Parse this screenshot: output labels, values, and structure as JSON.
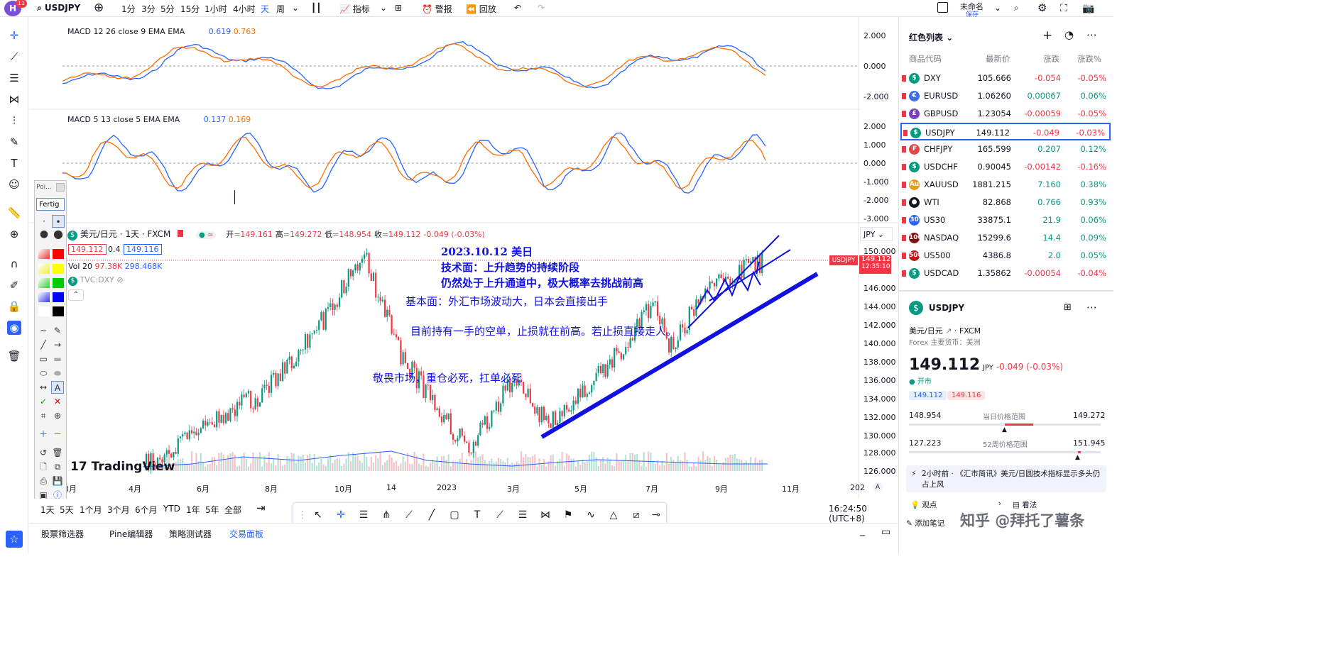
{
  "topbar": {
    "logo_letter": "H",
    "logo_badge": "11",
    "symbol": "USDJPY",
    "intervals": [
      "1分",
      "3分",
      "5分",
      "15分",
      "1小时",
      "4小时",
      "天",
      "周"
    ],
    "active_interval": "天",
    "indicators_label": "指标",
    "alert_label": "警报",
    "replay_label": "回放",
    "layout_name": "未命名",
    "layout_status": "保存"
  },
  "chart": {
    "macd1": {
      "label": "MACD 12 26 close 9 EMA EMA",
      "v1": "0.619",
      "v2": "0.763",
      "axis": [
        "2.000",
        "0.000",
        "-2.000"
      ]
    },
    "macd2": {
      "label": "MACD 5 13 close 5 EMA EMA",
      "v1": "0.137",
      "v2": "0.169",
      "axis": [
        "2.000",
        "1.000",
        "0.000",
        "-1.000",
        "-2.000",
        "-3.000"
      ]
    },
    "legend": {
      "title": "美元/日元 · 1天 · FXCM",
      "o_label": "开",
      "o": "=149.161",
      "h_label": "高",
      "h": "=149.272",
      "l_label": "低",
      "l": "=148.954",
      "c_label": "收",
      "c": "=149.112",
      "change": "-0.049 (-0.03%)",
      "bid": "149.112",
      "spread": "0.4",
      "ask": "149.116",
      "vol_label": "Vol 20",
      "vol1": "97.38K",
      "vol2": "298.468K",
      "compare": "TVC:DXY"
    },
    "currency": "JPY",
    "price_axis": [
      "150.000",
      "148.000",
      "146.000",
      "144.000",
      "142.000",
      "140.000",
      "138.000",
      "136.000",
      "134.000",
      "132.000",
      "130.000",
      "128.000",
      "126.000"
    ],
    "price_tag_symbol": "USDJPY",
    "price_tag_value": "149.112",
    "price_tag_time": "12:35:10",
    "x_axis": [
      "3月",
      "4月",
      "6月",
      "8月",
      "10月",
      "14",
      "2023",
      "3月",
      "5月",
      "7月",
      "9月",
      "11月",
      "202"
    ],
    "watermark": "TradingView",
    "annotations": [
      "2023.10.12 美日",
      "技术面：上升趋势的持续阶段",
      "仍然处于上升通道中，极大概率去挑战前高",
      "基本面：外汇市场波动大，日本会直接出手",
      "目前持有一手的空单，止损就在前高。若止损直接走人。",
      "敬畏市场，重仓必死，扛单必死"
    ]
  },
  "draw_panel": {
    "title": "Poi...",
    "input_value": "Fertig"
  },
  "bottom": {
    "ranges": [
      "1天",
      "5天",
      "1个月",
      "3个月",
      "6个月",
      "YTD",
      "1年",
      "5年",
      "全部"
    ],
    "clock": "16:24:50 (UTC+8)",
    "tabs": [
      "股票筛选器",
      "Pine编辑器",
      "策略测试器",
      "交易面板"
    ],
    "active_tab": "交易面板"
  },
  "watchlist": {
    "title": "红色列表",
    "headers": [
      "商品代码",
      "最新价",
      "涨跌",
      "涨跌%"
    ],
    "rows": [
      {
        "sym": "DXY",
        "last": "105.666",
        "chg": "-0.054",
        "pct": "-0.05%",
        "dir": "dn",
        "color": "#089981",
        "ico": "$"
      },
      {
        "sym": "EURUSD",
        "last": "1.06260",
        "chg": "0.00067",
        "pct": "0.06%",
        "dir": "up",
        "color": "#3d6fe0",
        "ico": "€"
      },
      {
        "sym": "GBPUSD",
        "last": "1.23054",
        "chg": "-0.00059",
        "pct": "-0.05%",
        "dir": "dn",
        "color": "#7b3fbf",
        "ico": "£"
      },
      {
        "sym": "USDJPY",
        "last": "149.112",
        "chg": "-0.049",
        "pct": "-0.03%",
        "dir": "dn",
        "color": "#089981",
        "ico": "$"
      },
      {
        "sym": "CHFJPY",
        "last": "165.599",
        "chg": "0.207",
        "pct": "0.12%",
        "dir": "up",
        "color": "#e04848",
        "ico": "₣"
      },
      {
        "sym": "USDCHF",
        "last": "0.90045",
        "chg": "-0.00142",
        "pct": "-0.16%",
        "dir": "dn",
        "color": "#089981",
        "ico": "$"
      },
      {
        "sym": "XAUUSD",
        "last": "1881.215",
        "chg": "7.160",
        "pct": "0.38%",
        "dir": "up",
        "color": "#e0a020",
        "ico": "Au"
      },
      {
        "sym": "WTI",
        "last": "82.868",
        "chg": "0.766",
        "pct": "0.93%",
        "dir": "up",
        "color": "#131722",
        "ico": "●"
      },
      {
        "sym": "US30",
        "last": "33875.1",
        "chg": "21.9",
        "pct": "0.06%",
        "dir": "up",
        "color": "#2962ff",
        "ico": "30"
      },
      {
        "sym": "NASDAQ",
        "last": "15299.6",
        "chg": "14.4",
        "pct": "0.09%",
        "dir": "up",
        "color": "#7a1010",
        "ico": "100"
      },
      {
        "sym": "US500",
        "last": "4386.8",
        "chg": "2.0",
        "pct": "0.05%",
        "dir": "up",
        "color": "#c01818",
        "ico": "500"
      },
      {
        "sym": "USDCAD",
        "last": "1.35862",
        "chg": "-0.00054",
        "pct": "-0.04%",
        "dir": "dn",
        "color": "#089981",
        "ico": "$"
      }
    ],
    "selected": "USDJPY"
  },
  "detail": {
    "symbol": "USDJPY",
    "name": "美元/日元",
    "exchange": "FXCM",
    "sub": "Forex 主要货币：美洲",
    "price": "149.112",
    "currency": "JPY",
    "change": "-0.049 (-0.03%)",
    "status": "开市",
    "bid": "149.112",
    "ask": "149.116",
    "day_low": "148.954",
    "day_label": "当日价格范围",
    "day_high": "149.272",
    "wk_low": "127.223",
    "wk_label": "52周价格范围",
    "wk_high": "151.945",
    "news": "2小时前 · 《汇市简讯》美元/日圆技术指标显示多头仍占上风",
    "btn_views": "观点",
    "btn_opinion": "看法",
    "btn_note": "添加笔记",
    "watermark": "知乎 @拜托了薯条"
  },
  "colors": {
    "accent": "#2962ff",
    "up": "#089981",
    "down": "#f23645",
    "annotation": "#1010e0",
    "macd_line": "#2962ff",
    "signal_line": "#ff6d00"
  }
}
